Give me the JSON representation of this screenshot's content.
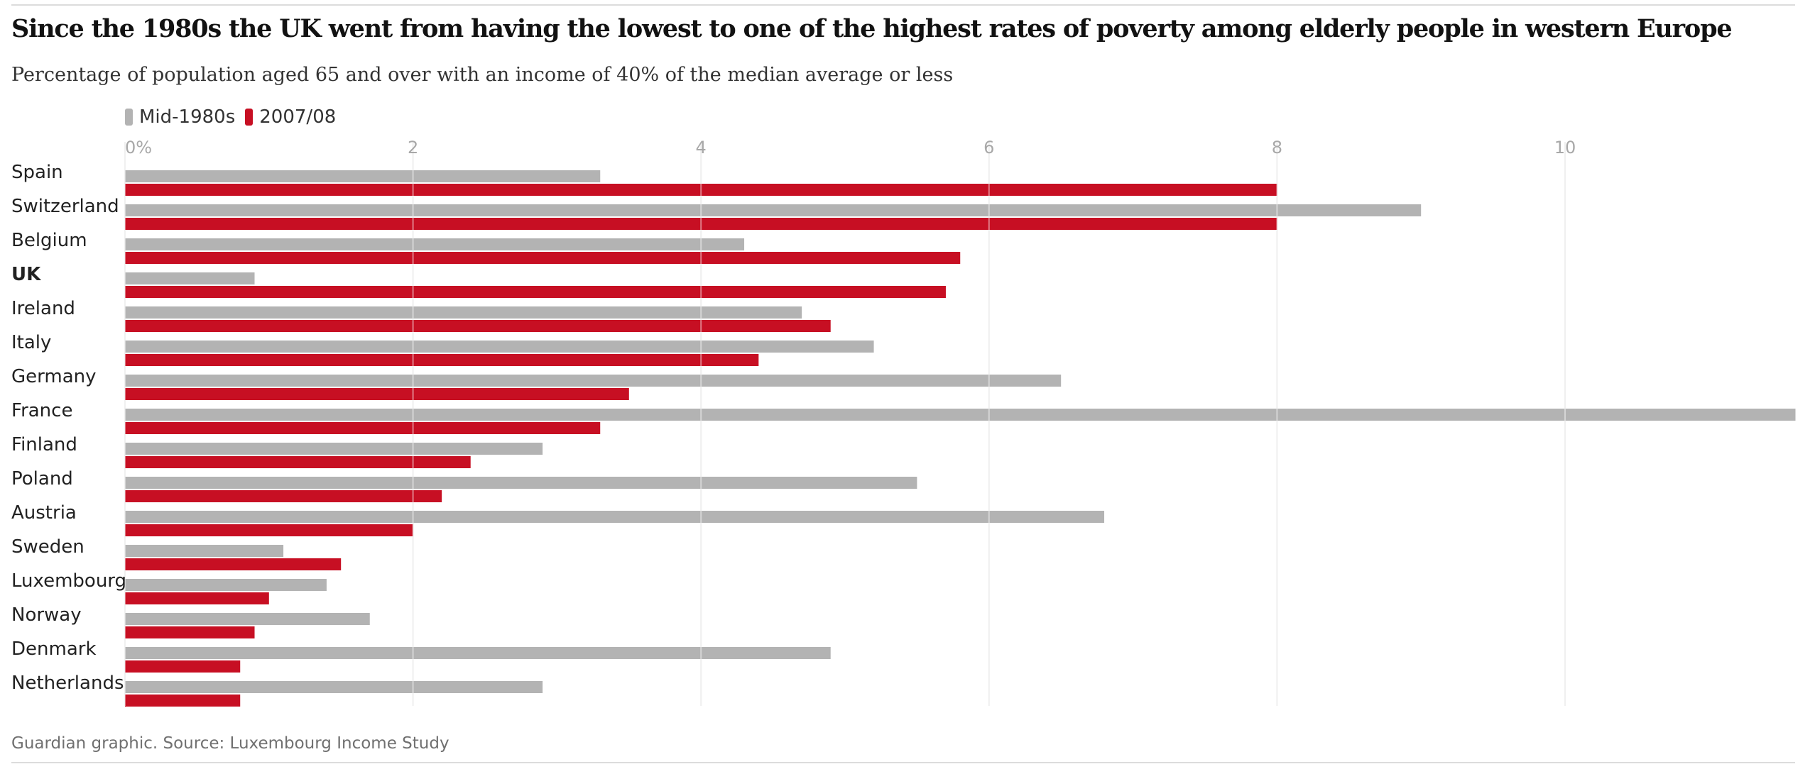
{
  "title": "Since the 1980s the UK went from having the lowest to one of the highest rates of poverty among elderly people in western Europe",
  "subtitle": "Percentage of population aged 65 and over with an income of 40% of the median average or less",
  "source": "Guardian graphic. Source: Luxembourg Income Study",
  "colors": {
    "series1": "#b3b3b3",
    "series2": "#c70f23",
    "grid": "#e4e4e4",
    "tick": "#a8a8a8"
  },
  "chart_data": {
    "type": "bar",
    "orientation": "horizontal",
    "title": "Since the 1980s the UK went from having the lowest to one of the highest rates of poverty among elderly people in western Europe",
    "subtitle": "Percentage of population aged 65 and over with an income of 40% of the median average or less",
    "categories": [
      "Spain",
      "Switzerland",
      "Belgium",
      "UK",
      "Ireland",
      "Italy",
      "Germany",
      "France",
      "Finland",
      "Poland",
      "Austria",
      "Sweden",
      "Luxembourg",
      "Norway",
      "Denmark",
      "Netherlands"
    ],
    "highlight": "UK",
    "series": [
      {
        "name": "Mid-1980s",
        "color": "#b3b3b3",
        "values": [
          3.3,
          9.0,
          4.3,
          0.9,
          4.7,
          5.2,
          6.5,
          11.6,
          2.9,
          5.5,
          6.8,
          1.1,
          1.4,
          1.7,
          4.9,
          2.9
        ]
      },
      {
        "name": "2007/08",
        "color": "#c70f23",
        "values": [
          8.0,
          8.0,
          5.8,
          5.7,
          4.9,
          4.4,
          3.5,
          3.3,
          2.4,
          2.2,
          2.0,
          1.5,
          1.0,
          0.9,
          0.8,
          0.8
        ]
      }
    ],
    "x_ticks": [
      0,
      2,
      4,
      6,
      8,
      10
    ],
    "x_tick_labels": [
      "0%",
      "2",
      "4",
      "6",
      "8",
      "10"
    ],
    "xlim": [
      0,
      11.6
    ],
    "grid": true,
    "legend_position": "top-left"
  }
}
